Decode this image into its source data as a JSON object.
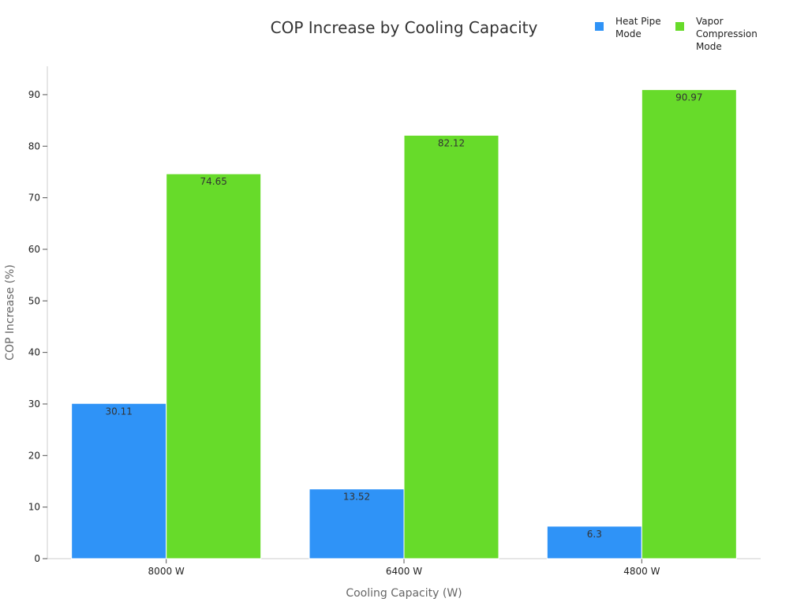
{
  "chart_data": {
    "type": "bar",
    "title": "COP Increase by Cooling Capacity",
    "xlabel": "Cooling Capacity (W)",
    "ylabel": "COP Increase (%)",
    "categories": [
      "8000 W",
      "6400 W",
      "4800 W"
    ],
    "series": [
      {
        "name": "Heat Pipe Mode",
        "legend_lines": [
          "Heat Pipe",
          "Mode"
        ],
        "color": "#2f93f7",
        "values": [
          30.11,
          13.52,
          6.3
        ]
      },
      {
        "name": "Vapor Compression Mode",
        "legend_lines": [
          "Vapor",
          "Compression",
          "Mode"
        ],
        "color": "#67db2a",
        "values": [
          74.65,
          82.12,
          90.97
        ]
      }
    ],
    "ylim": [
      0,
      95.5
    ],
    "yticks": [
      0,
      10,
      20,
      30,
      40,
      50,
      60,
      70,
      80,
      90
    ],
    "grid": false,
    "legend_position": "top-right"
  }
}
